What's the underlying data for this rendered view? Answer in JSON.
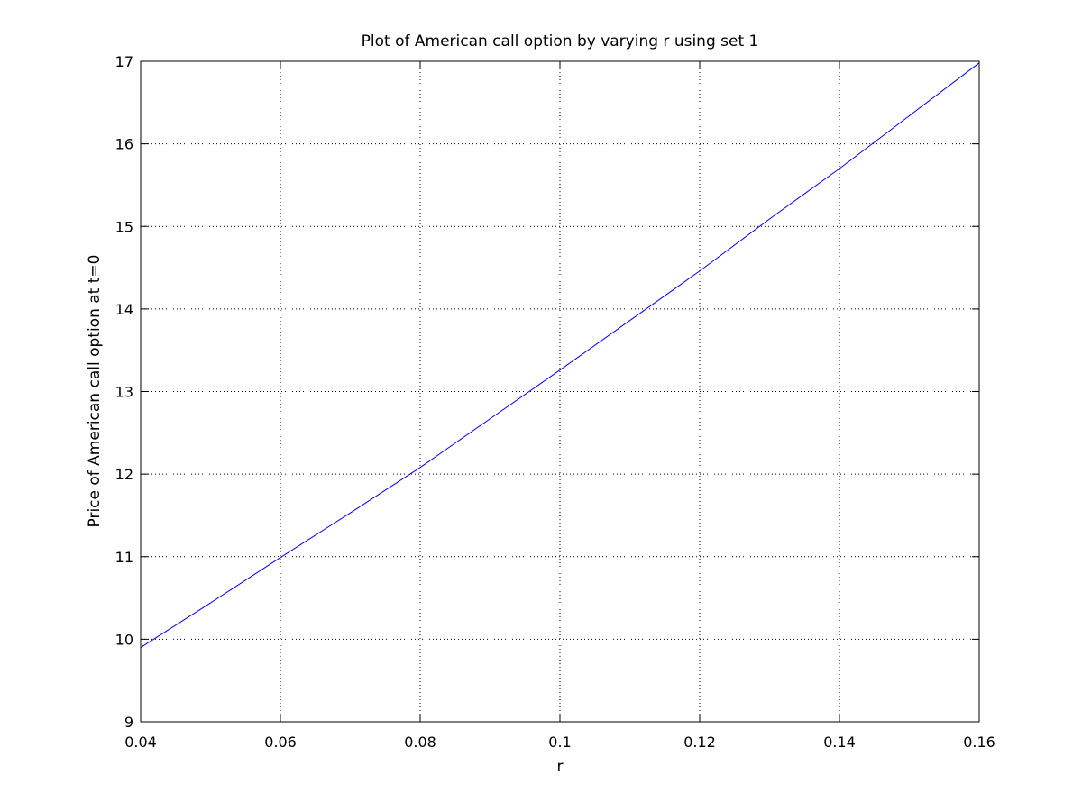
{
  "chart_data": {
    "type": "line",
    "title": "Plot of American call option by varying r using set 1",
    "xlabel": "r",
    "ylabel": "Price of American call option at t=0",
    "xlim": [
      0.04,
      0.16
    ],
    "ylim": [
      9,
      17
    ],
    "xticks": [
      "0.04",
      "0.06",
      "0.08",
      "0.1",
      "0.12",
      "0.14",
      "0.16"
    ],
    "yticks": [
      "9",
      "10",
      "11",
      "12",
      "13",
      "14",
      "15",
      "16",
      "17"
    ],
    "grid": true,
    "legend": "none",
    "series": [
      {
        "color": "#0000ff",
        "x": [
          0.04,
          0.05,
          0.06,
          0.07,
          0.08,
          0.09,
          0.1,
          0.11,
          0.12,
          0.13,
          0.14,
          0.15,
          0.16
        ],
        "y": [
          9.9,
          10.44,
          10.99,
          11.53,
          12.08,
          12.67,
          13.26,
          13.86,
          14.46,
          15.09,
          15.7,
          16.34,
          16.98
        ]
      }
    ]
  }
}
